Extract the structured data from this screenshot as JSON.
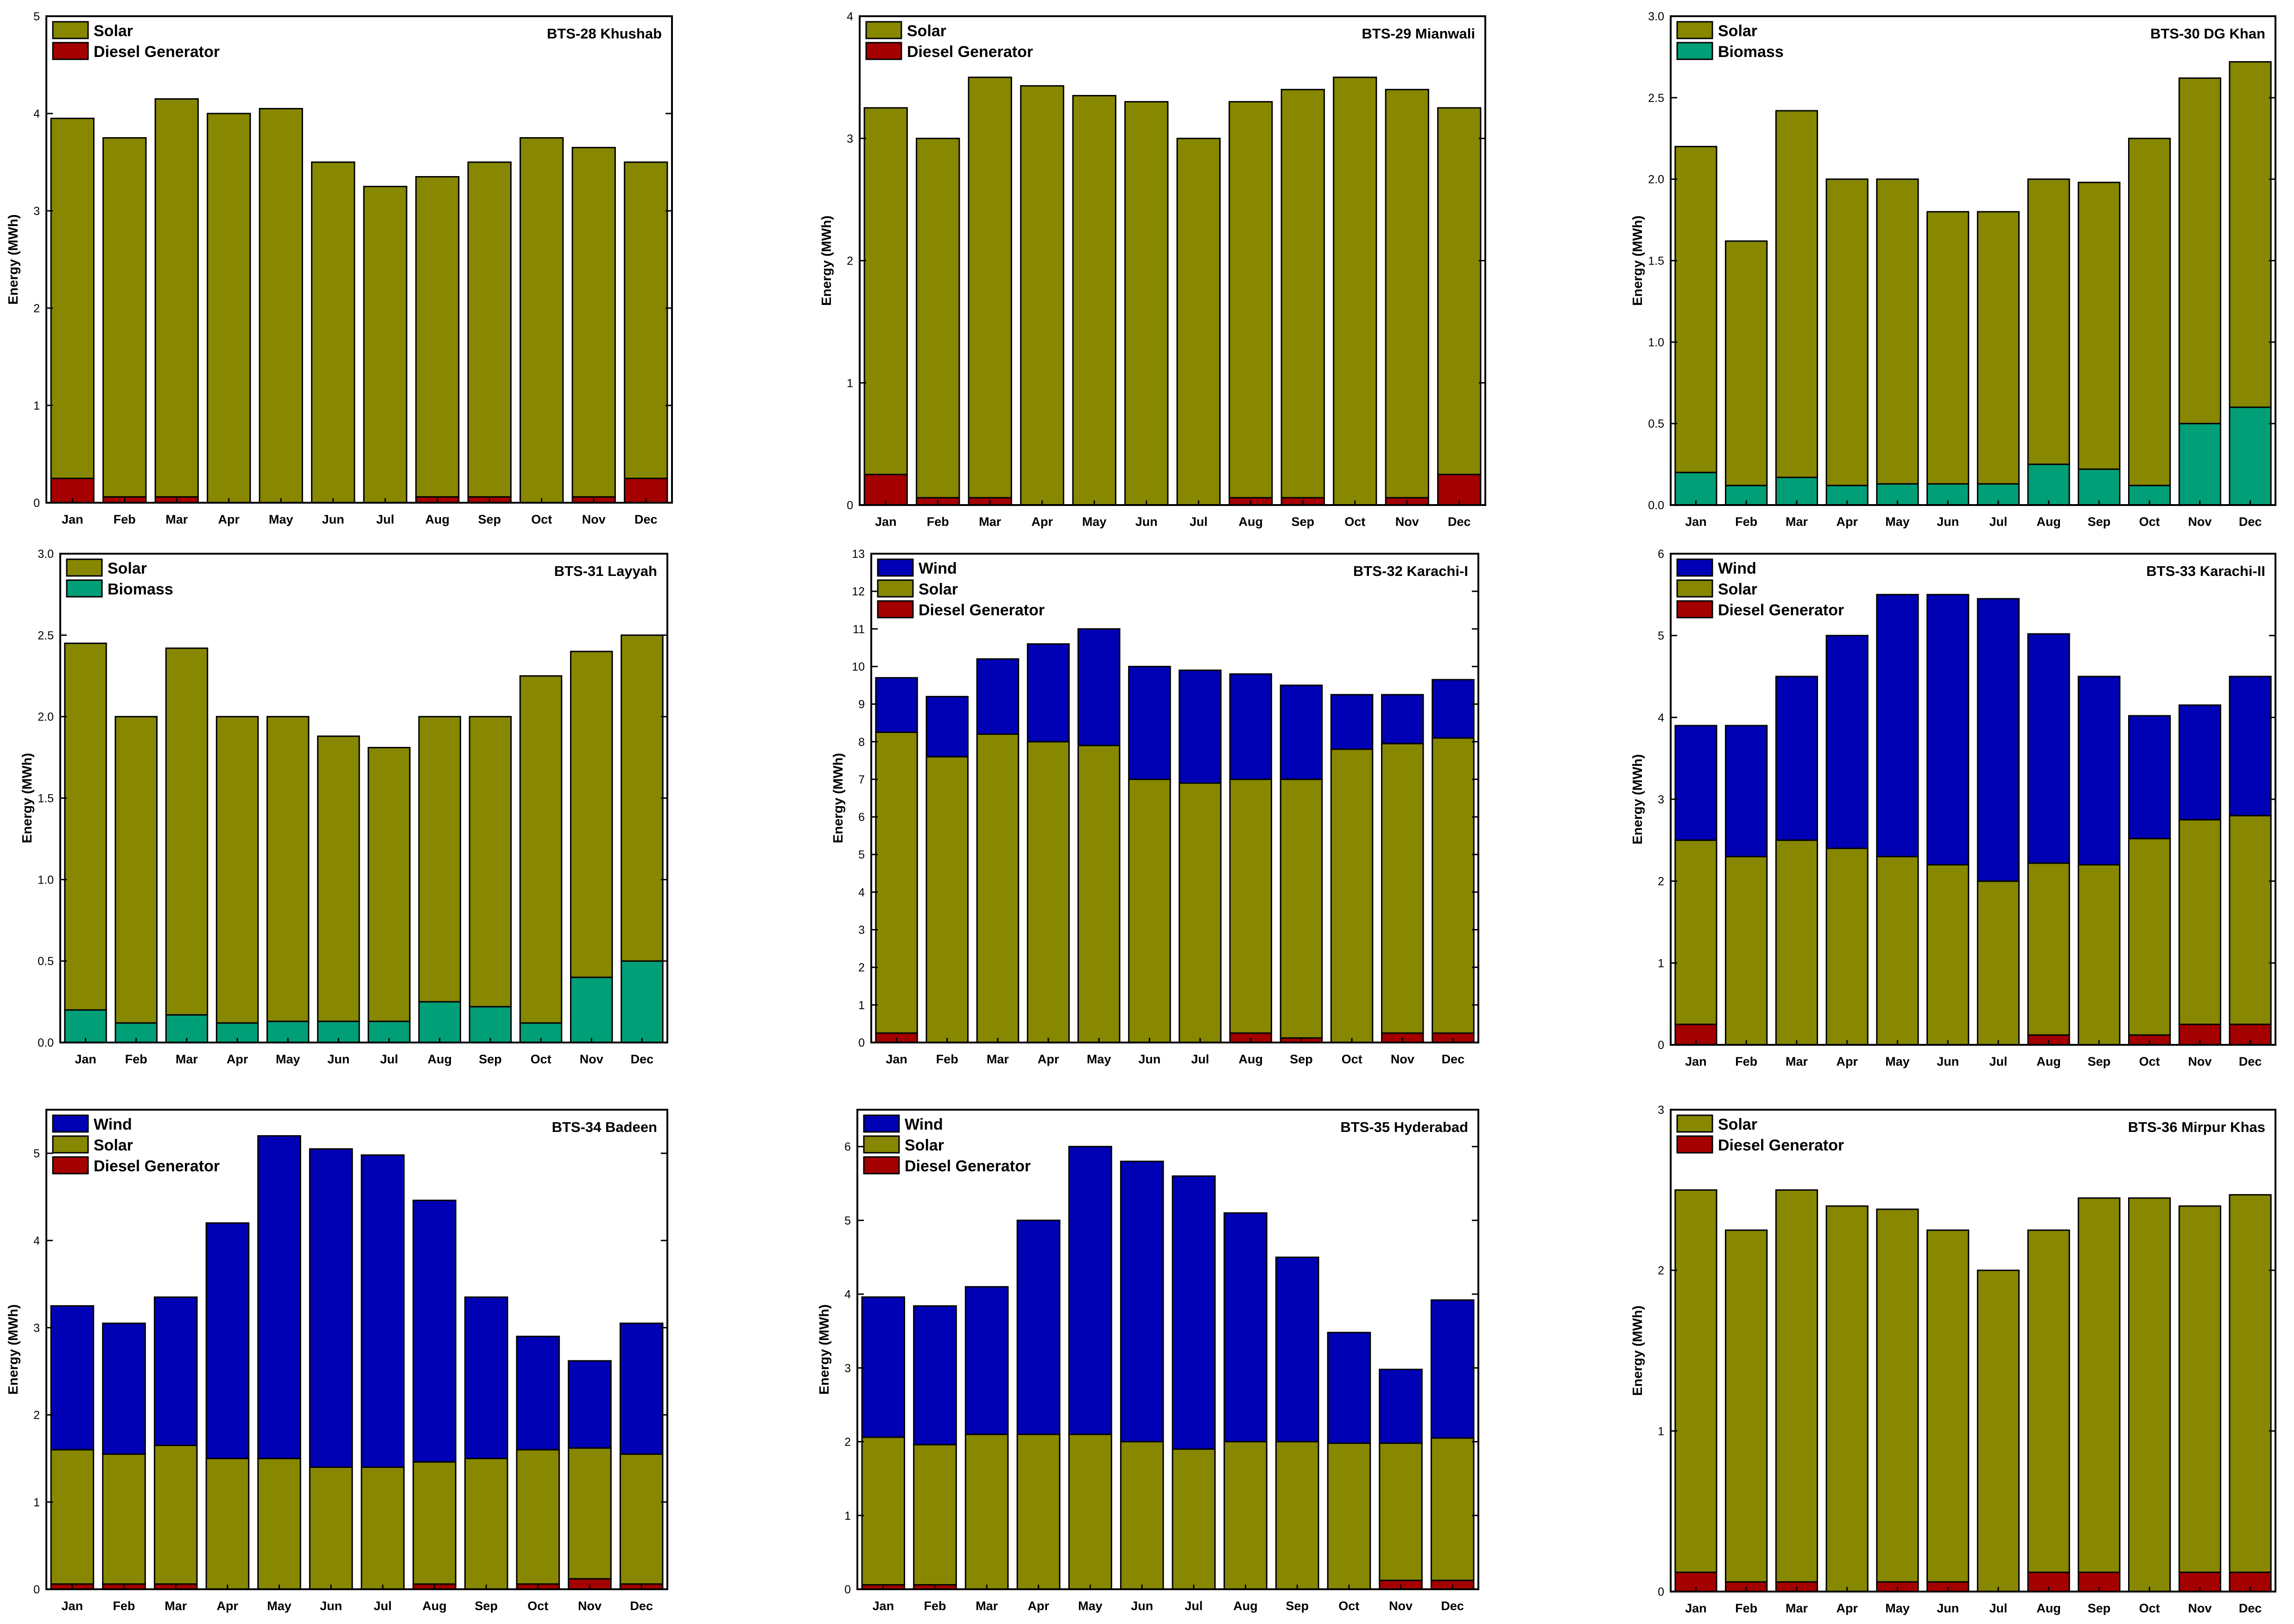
{
  "figure": {
    "months": [
      "Jan",
      "Feb",
      "Mar",
      "Apr",
      "May",
      "Jun",
      "Jul",
      "Aug",
      "Sep",
      "Oct",
      "Nov",
      "Dec"
    ],
    "colors": {
      "Solar": "#878700",
      "Diesel Generator": "#a40000",
      "Biomass": "#009f77",
      "Wind": "#0000b5"
    }
  },
  "chart_data": [
    {
      "type": "bar",
      "stacked": true,
      "title": "BTS-28 Khushab",
      "ylabel": "Energy (MWh)",
      "ylim": [
        0,
        5
      ],
      "yticks": [
        "0",
        "1",
        "2",
        "3",
        "4",
        "5"
      ],
      "legend_position": "top-left",
      "legend": [
        "Solar",
        "Diesel Generator"
      ],
      "categories": [
        "Jan",
        "Feb",
        "Mar",
        "Apr",
        "May",
        "Jun",
        "Jul",
        "Aug",
        "Sep",
        "Oct",
        "Nov",
        "Dec"
      ],
      "series": [
        {
          "name": "Diesel Generator",
          "values": [
            0.25,
            0.06,
            0.06,
            0,
            0,
            0,
            0,
            0.06,
            0.06,
            0,
            0.06,
            0.25
          ]
        },
        {
          "name": "Solar",
          "values": [
            3.7,
            3.69,
            4.09,
            4.0,
            4.05,
            3.5,
            3.25,
            3.29,
            3.44,
            3.75,
            3.59,
            3.25
          ]
        }
      ]
    },
    {
      "type": "bar",
      "stacked": true,
      "title": "BTS-29 Mianwali",
      "ylabel": "Energy (MWh)",
      "ylim": [
        0,
        4
      ],
      "yticks": [
        "0",
        "1",
        "2",
        "3",
        "4"
      ],
      "legend_position": "top-left",
      "legend": [
        "Solar",
        "Diesel Generator"
      ],
      "categories": [
        "Jan",
        "Feb",
        "Mar",
        "Apr",
        "May",
        "Jun",
        "Jul",
        "Aug",
        "Sep",
        "Oct",
        "Nov",
        "Dec"
      ],
      "series": [
        {
          "name": "Diesel Generator",
          "values": [
            0.25,
            0.06,
            0.06,
            0,
            0,
            0,
            0,
            0.06,
            0.06,
            0,
            0.06,
            0.25
          ]
        },
        {
          "name": "Solar",
          "values": [
            3.0,
            2.94,
            3.44,
            3.43,
            3.35,
            3.3,
            3.0,
            3.24,
            3.34,
            3.5,
            3.34,
            3.0
          ]
        }
      ]
    },
    {
      "type": "bar",
      "stacked": true,
      "title": "BTS-30 DG Khan",
      "ylabel": "Energy (MWh)",
      "ylim": [
        0,
        3
      ],
      "yticks": [
        "0.0",
        "0.5",
        "1.0",
        "1.5",
        "2.0",
        "2.5",
        "3.0"
      ],
      "legend_position": "top-left",
      "legend": [
        "Solar",
        "Biomass"
      ],
      "categories": [
        "Jan",
        "Feb",
        "Mar",
        "Apr",
        "May",
        "Jun",
        "Jul",
        "Aug",
        "Sep",
        "Oct",
        "Nov",
        "Dec"
      ],
      "series": [
        {
          "name": "Biomass",
          "values": [
            0.2,
            0.12,
            0.17,
            0.12,
            0.13,
            0.13,
            0.13,
            0.25,
            0.22,
            0.12,
            0.5,
            0.6
          ]
        },
        {
          "name": "Solar",
          "values": [
            2.0,
            1.5,
            2.25,
            1.88,
            1.87,
            1.67,
            1.67,
            1.75,
            1.76,
            2.13,
            2.12,
            2.12
          ]
        }
      ]
    },
    {
      "type": "bar",
      "stacked": true,
      "title": "BTS-31 Layyah",
      "ylabel": "Energy (MWh)",
      "ylim": [
        0,
        3
      ],
      "yticks": [
        "0.0",
        "0.5",
        "1.0",
        "1.5",
        "2.0",
        "2.5",
        "3.0"
      ],
      "legend_position": "top-left",
      "legend": [
        "Solar",
        "Biomass"
      ],
      "categories": [
        "Jan",
        "Feb",
        "Mar",
        "Apr",
        "May",
        "Jun",
        "Jul",
        "Aug",
        "Sep",
        "Oct",
        "Nov",
        "Dec"
      ],
      "series": [
        {
          "name": "Biomass",
          "values": [
            0.2,
            0.12,
            0.17,
            0.12,
            0.13,
            0.13,
            0.13,
            0.25,
            0.22,
            0.12,
            0.4,
            0.5
          ]
        },
        {
          "name": "Solar",
          "values": [
            2.25,
            1.88,
            2.25,
            1.88,
            1.87,
            1.75,
            1.68,
            1.75,
            1.78,
            2.13,
            2.0,
            2.0
          ]
        }
      ]
    },
    {
      "type": "bar",
      "stacked": true,
      "title": "BTS-32 Karachi-I",
      "ylabel": "Energy (MWh)",
      "ylim": [
        0,
        13
      ],
      "yticks": [
        "0",
        "1",
        "2",
        "3",
        "4",
        "5",
        "6",
        "7",
        "8",
        "9",
        "10",
        "11",
        "12",
        "13"
      ],
      "legend_position": "top-left",
      "legend": [
        "Wind",
        "Solar",
        "Diesel Generator"
      ],
      "categories": [
        "Jan",
        "Feb",
        "Mar",
        "Apr",
        "May",
        "Jun",
        "Jul",
        "Aug",
        "Sep",
        "Oct",
        "Nov",
        "Dec"
      ],
      "series": [
        {
          "name": "Diesel Generator",
          "values": [
            0.25,
            0,
            0,
            0,
            0,
            0,
            0,
            0.25,
            0.12,
            0,
            0.25,
            0.25
          ]
        },
        {
          "name": "Solar",
          "values": [
            8.0,
            7.6,
            8.2,
            8.0,
            7.9,
            7.0,
            6.9,
            6.75,
            6.88,
            7.8,
            7.7,
            7.85
          ]
        },
        {
          "name": "Wind",
          "values": [
            1.45,
            1.6,
            2.0,
            2.6,
            3.1,
            3.0,
            3.0,
            2.8,
            2.5,
            1.45,
            1.3,
            1.55
          ]
        }
      ]
    },
    {
      "type": "bar",
      "stacked": true,
      "title": "BTS-33 Karachi-II",
      "ylabel": "Energy (MWh)",
      "ylim": [
        0,
        6
      ],
      "yticks": [
        "0",
        "1",
        "2",
        "3",
        "4",
        "5",
        "6"
      ],
      "legend_position": "top-left",
      "legend": [
        "Wind",
        "Solar",
        "Diesel Generator"
      ],
      "categories": [
        "Jan",
        "Feb",
        "Mar",
        "Apr",
        "May",
        "Jun",
        "Jul",
        "Aug",
        "Sep",
        "Oct",
        "Nov",
        "Dec"
      ],
      "series": [
        {
          "name": "Diesel Generator",
          "values": [
            0.25,
            0,
            0,
            0,
            0,
            0,
            0,
            0.12,
            0,
            0.12,
            0.25,
            0.25
          ]
        },
        {
          "name": "Solar",
          "values": [
            2.25,
            2.3,
            2.5,
            2.4,
            2.3,
            2.2,
            2.0,
            2.1,
            2.2,
            2.4,
            2.5,
            2.55
          ]
        },
        {
          "name": "Wind",
          "values": [
            1.4,
            1.6,
            2.0,
            2.6,
            3.2,
            3.3,
            3.45,
            2.8,
            2.3,
            1.5,
            1.4,
            1.7
          ]
        }
      ]
    },
    {
      "type": "bar",
      "stacked": true,
      "title": "BTS-34 Badeen",
      "ylabel": "Energy (MWh)",
      "ylim": [
        0,
        5.5
      ],
      "yticks": [
        "0",
        "1",
        "2",
        "3",
        "4",
        "5"
      ],
      "legend_position": "top-left",
      "legend": [
        "Wind",
        "Solar",
        "Diesel Generator"
      ],
      "categories": [
        "Jan",
        "Feb",
        "Mar",
        "Apr",
        "May",
        "Jun",
        "Jul",
        "Aug",
        "Sep",
        "Oct",
        "Nov",
        "Dec"
      ],
      "series": [
        {
          "name": "Diesel Generator",
          "values": [
            0.06,
            0.06,
            0.06,
            0,
            0,
            0,
            0,
            0.06,
            0,
            0.06,
            0.12,
            0.06
          ]
        },
        {
          "name": "Solar",
          "values": [
            1.54,
            1.49,
            1.59,
            1.5,
            1.5,
            1.4,
            1.4,
            1.4,
            1.5,
            1.54,
            1.5,
            1.49
          ]
        },
        {
          "name": "Wind",
          "values": [
            1.65,
            1.5,
            1.7,
            2.7,
            3.7,
            3.65,
            3.58,
            3.0,
            1.85,
            1.3,
            1.0,
            1.5
          ]
        }
      ]
    },
    {
      "type": "bar",
      "stacked": true,
      "title": "BTS-35 Hyderabad",
      "ylabel": "Energy (MWh)",
      "ylim": [
        0,
        6.5
      ],
      "yticks": [
        "0",
        "1",
        "2",
        "3",
        "4",
        "5",
        "6"
      ],
      "legend_position": "top-left",
      "legend": [
        "Wind",
        "Solar",
        "Diesel Generator"
      ],
      "categories": [
        "Jan",
        "Feb",
        "Mar",
        "Apr",
        "May",
        "Jun",
        "Jul",
        "Aug",
        "Sep",
        "Oct",
        "Nov",
        "Dec"
      ],
      "series": [
        {
          "name": "Diesel Generator",
          "values": [
            0.06,
            0.06,
            0,
            0,
            0,
            0,
            0,
            0,
            0,
            0,
            0.12,
            0.12
          ]
        },
        {
          "name": "Solar",
          "values": [
            2.0,
            1.9,
            2.1,
            2.1,
            2.1,
            2.0,
            1.9,
            2.0,
            2.0,
            1.98,
            1.86,
            1.93
          ]
        },
        {
          "name": "Wind",
          "values": [
            1.9,
            1.88,
            2.0,
            2.9,
            3.9,
            3.8,
            3.7,
            3.1,
            2.5,
            1.5,
            1.0,
            1.87
          ]
        }
      ]
    },
    {
      "type": "bar",
      "stacked": true,
      "title": "BTS-36 Mirpur Khas",
      "ylabel": "Energy (MWh)",
      "ylim": [
        0,
        3
      ],
      "yticks": [
        "0",
        "1",
        "2",
        "3"
      ],
      "legend_position": "top-left",
      "legend": [
        "Solar",
        "Diesel Generator"
      ],
      "categories": [
        "Jan",
        "Feb",
        "Mar",
        "Apr",
        "May",
        "Jun",
        "Jul",
        "Aug",
        "Sep",
        "Oct",
        "Nov",
        "Dec"
      ],
      "series": [
        {
          "name": "Diesel Generator",
          "values": [
            0.12,
            0.06,
            0.06,
            0,
            0.06,
            0.06,
            0,
            0.12,
            0.12,
            0,
            0.12,
            0.12
          ]
        },
        {
          "name": "Solar",
          "values": [
            2.38,
            2.19,
            2.44,
            2.4,
            2.32,
            2.19,
            2.0,
            2.13,
            2.33,
            2.45,
            2.28,
            2.35
          ]
        }
      ]
    }
  ]
}
